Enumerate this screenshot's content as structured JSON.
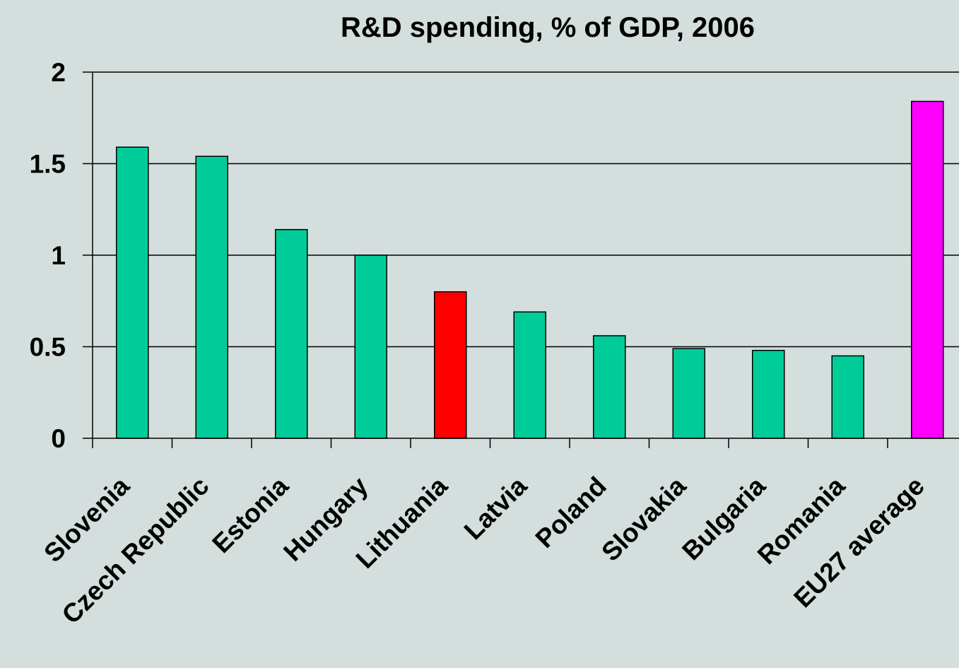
{
  "chart_data": {
    "type": "bar",
    "title": "R&D spending, % of GDP, 2006",
    "xlabel": "",
    "ylabel": "",
    "ylim": [
      0,
      2
    ],
    "yticks": [
      "0",
      "0.5",
      "1",
      "1.5",
      "2"
    ],
    "grid": true,
    "categories": [
      "Slovenia",
      "Czech Republic",
      "Estonia",
      "Hungary",
      "Lithuania",
      "Latvia",
      "Poland",
      "Slovakia",
      "Bulgaria",
      "Romania",
      "EU27 average"
    ],
    "values": [
      1.59,
      1.54,
      1.14,
      1.0,
      0.8,
      0.69,
      0.56,
      0.49,
      0.48,
      0.45,
      1.84
    ],
    "colors": [
      "#00cc99",
      "#00cc99",
      "#00cc99",
      "#00cc99",
      "#ff0000",
      "#00cc99",
      "#00cc99",
      "#00cc99",
      "#00cc99",
      "#00cc99",
      "#ff00ff"
    ]
  }
}
